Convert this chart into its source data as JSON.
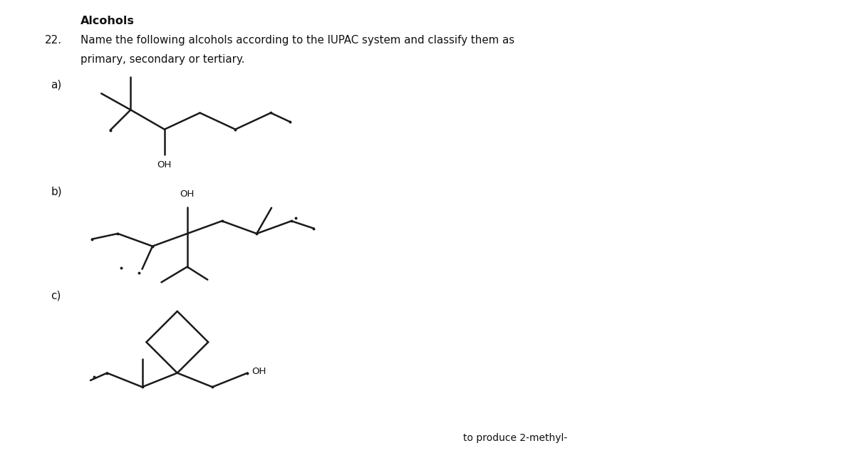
{
  "background_color": "#ffffff",
  "text_color": "#111111",
  "line_color": "#1a1a1a",
  "line_width": 1.8,
  "title": "Alcohols",
  "problem": "22.",
  "instruction_line1": "Name the following alcohols according to the IUPAC system and classify them as",
  "instruction_line2": "primary, secondary or tertiary.",
  "label_a": "a)",
  "label_b": "b)",
  "label_c": "c)",
  "oh_fontsize": 9.5,
  "label_fontsize": 11,
  "header_fontsize": 10.8,
  "bottom_text": "to produce 2-methyl-"
}
